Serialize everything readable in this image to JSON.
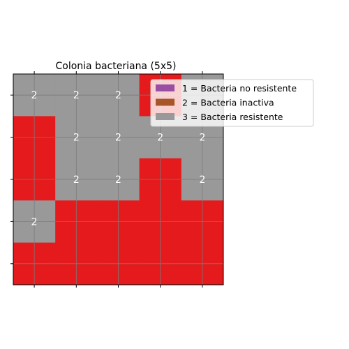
{
  "chart_data": {
    "type": "heatmap",
    "title": "Colonia bacteriana (5x5)",
    "xlabel": "",
    "ylabel": "",
    "rows": 5,
    "cols": 5,
    "grid": true,
    "tick_labels": "none",
    "colors": {
      "red": "#e41a1c",
      "grey": "#999999",
      "purple": "#984ea3",
      "brown": "#a65628",
      "grid_line": "#7a7a7a"
    },
    "grid_colors": [
      [
        "grey",
        "grey",
        "grey",
        "red",
        "grey"
      ],
      [
        "red",
        "grey",
        "grey",
        "grey",
        "grey"
      ],
      [
        "red",
        "grey",
        "grey",
        "red",
        "grey"
      ],
      [
        "grey",
        "red",
        "red",
        "red",
        "red"
      ],
      [
        "red",
        "red",
        "red",
        "red",
        "red"
      ]
    ],
    "cell_labels": [
      [
        "2",
        "2",
        "2",
        "",
        ""
      ],
      [
        "",
        "2",
        "2",
        "2",
        "2"
      ],
      [
        "",
        "2",
        "2",
        "",
        "2"
      ],
      [
        "2",
        "",
        "",
        "",
        ""
      ],
      [
        "",
        "",
        "",
        "",
        ""
      ]
    ],
    "legend": {
      "placement": "top-right, outside plot",
      "entries": [
        {
          "label": "1 = Bacteria no resistente",
          "color": "#984ea3"
        },
        {
          "label": "2 = Bacteria inactiva",
          "color": "#a65628"
        },
        {
          "label": "3 = Bacteria resistente",
          "color": "#999999"
        }
      ]
    }
  }
}
